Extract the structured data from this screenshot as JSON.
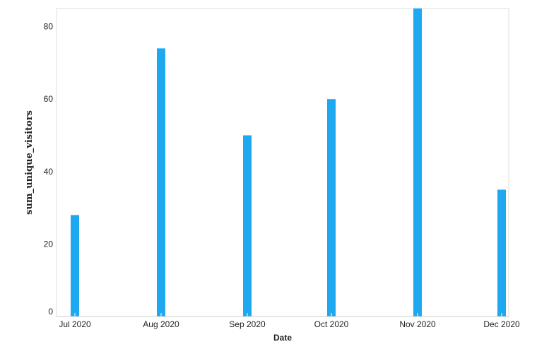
{
  "chart_data": {
    "type": "bar",
    "categories": [
      "Jul 2020",
      "Aug 2020",
      "Sep 2020",
      "Oct 2020",
      "Nov 2020",
      "Dec 2020"
    ],
    "values": [
      28,
      74,
      50,
      60,
      85,
      35
    ],
    "xlabel": "Date",
    "ylabel": "sum_unique_visitors",
    "ylim": [
      0,
      85
    ],
    "yticks": [
      0,
      20,
      40,
      60,
      80
    ],
    "grid": false,
    "bar_color": "#1ea8f0"
  }
}
